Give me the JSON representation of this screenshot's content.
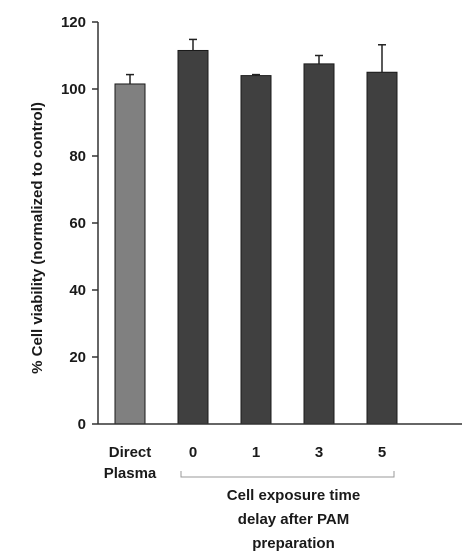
{
  "chart_data": {
    "type": "bar",
    "title": "",
    "ylabel": "% Cell viability (normalized to control)",
    "xlabel_group": [
      "Cell exposure time",
      "delay after PAM",
      "preparation"
    ],
    "ylim": [
      0,
      120
    ],
    "yticks": [
      0,
      20,
      40,
      60,
      80,
      100,
      120
    ],
    "grid": false,
    "categories": [
      [
        "Direct",
        "Plasma"
      ],
      [
        "0"
      ],
      [
        "1"
      ],
      [
        "3"
      ],
      [
        "5"
      ]
    ],
    "values": [
      101.5,
      111.5,
      104,
      107.5,
      105
    ],
    "errors": [
      2.8,
      3.3,
      0.3,
      2.5,
      8.2
    ],
    "colors": [
      "#808080",
      "#404040",
      "#404040",
      "#404040",
      "#404040"
    ],
    "bracket_spans_categories": [
      1,
      4
    ]
  }
}
